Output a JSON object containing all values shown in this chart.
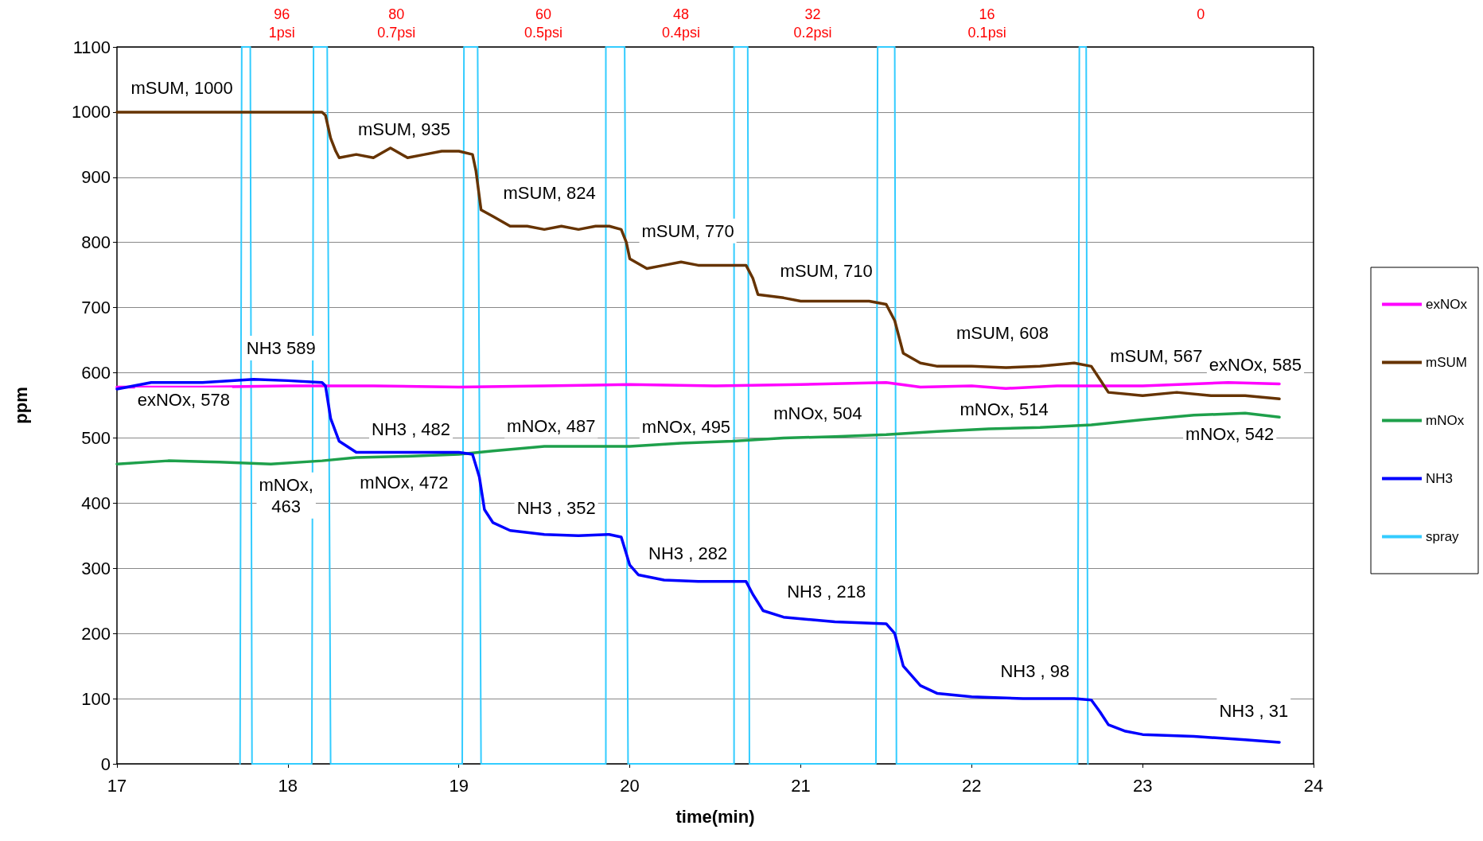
{
  "chart_data": {
    "type": "line",
    "xlabel": "time(min)",
    "ylabel": "ppm",
    "xlim": [
      17,
      24
    ],
    "xticks": [
      17,
      18,
      19,
      20,
      21,
      22,
      23,
      24
    ],
    "ylim": [
      0,
      1100
    ],
    "yticks": [
      0,
      100,
      200,
      300,
      400,
      500,
      600,
      700,
      800,
      900,
      1000,
      1100
    ],
    "grid": "y",
    "legend": "right",
    "marker": "none",
    "line_style": "solid",
    "series": [
      {
        "name": "exNOx",
        "color": "#ff00ff",
        "x": [
          17,
          17.5,
          18,
          18.5,
          19,
          19.5,
          20,
          20.5,
          21,
          21.5,
          21.7,
          22,
          22.2,
          22.5,
          23,
          23.5,
          23.8
        ],
        "values": [
          578,
          578,
          580,
          580,
          578,
          580,
          582,
          580,
          582,
          585,
          578,
          580,
          576,
          580,
          580,
          585,
          583
        ]
      },
      {
        "name": "mSUM",
        "color": "#663300",
        "x": [
          17,
          18.2,
          18.22,
          18.25,
          18.28,
          18.3,
          18.4,
          18.5,
          18.6,
          18.7,
          18.8,
          18.9,
          19,
          19.08,
          19.1,
          19.13,
          19.2,
          19.3,
          19.4,
          19.5,
          19.6,
          19.7,
          19.8,
          19.88,
          19.95,
          19.98,
          20,
          20.1,
          20.2,
          20.3,
          20.4,
          20.5,
          20.6,
          20.68,
          20.72,
          20.75,
          20.9,
          21,
          21.2,
          21.4,
          21.5,
          21.55,
          21.6,
          21.7,
          21.8,
          22,
          22.2,
          22.4,
          22.6,
          22.7,
          22.75,
          22.8,
          23,
          23.2,
          23.4,
          23.6,
          23.8
        ],
        "values": [
          1000,
          1000,
          995,
          960,
          940,
          930,
          935,
          930,
          945,
          930,
          935,
          940,
          940,
          935,
          910,
          850,
          840,
          825,
          825,
          820,
          825,
          820,
          825,
          825,
          820,
          800,
          775,
          760,
          765,
          770,
          765,
          765,
          765,
          765,
          745,
          720,
          715,
          710,
          710,
          710,
          705,
          680,
          630,
          615,
          610,
          610,
          608,
          610,
          615,
          610,
          590,
          570,
          565,
          570,
          565,
          565,
          560
        ]
      },
      {
        "name": "mNOx",
        "color": "#1ea04b",
        "x": [
          17,
          17.3,
          17.6,
          17.9,
          18.2,
          18.4,
          18.7,
          19,
          19.2,
          19.5,
          19.8,
          20,
          20.3,
          20.6,
          20.9,
          21.2,
          21.5,
          21.8,
          22.1,
          22.4,
          22.7,
          23,
          23.3,
          23.6,
          23.8
        ],
        "values": [
          460,
          465,
          463,
          460,
          465,
          470,
          472,
          475,
          480,
          487,
          487,
          487,
          492,
          495,
          500,
          502,
          505,
          510,
          514,
          516,
          520,
          528,
          535,
          538,
          532
        ]
      },
      {
        "name": "NH3",
        "color": "#0000ff",
        "x": [
          17,
          17.2,
          17.5,
          17.8,
          18,
          18.2,
          18.22,
          18.25,
          18.3,
          18.4,
          18.6,
          18.8,
          19,
          19.08,
          19.12,
          19.15,
          19.2,
          19.3,
          19.5,
          19.7,
          19.88,
          19.95,
          20,
          20.05,
          20.2,
          20.4,
          20.68,
          20.72,
          20.78,
          20.9,
          21.2,
          21.5,
          21.55,
          21.6,
          21.7,
          21.8,
          22,
          22.3,
          22.6,
          22.7,
          22.75,
          22.8,
          22.9,
          23,
          23.3,
          23.6,
          23.8
        ],
        "values": [
          575,
          585,
          585,
          590,
          588,
          585,
          580,
          530,
          495,
          478,
          478,
          478,
          478,
          475,
          440,
          390,
          370,
          358,
          352,
          350,
          352,
          348,
          305,
          290,
          282,
          280,
          280,
          260,
          235,
          225,
          218,
          215,
          200,
          150,
          120,
          108,
          103,
          100,
          100,
          98,
          80,
          60,
          50,
          45,
          42,
          37,
          33
        ]
      },
      {
        "name": "spray",
        "color": "#33ccff",
        "x": [
          17.72,
          17.73,
          17.78,
          17.79,
          18.14,
          18.15,
          18.23,
          18.25,
          19.02,
          19.03,
          19.11,
          19.13,
          19.86,
          19.86,
          19.97,
          19.99,
          20.61,
          20.61,
          20.69,
          20.7,
          21.44,
          21.45,
          21.55,
          21.56,
          22.62,
          22.63,
          22.67,
          22.68
        ],
        "values": [
          0,
          1100,
          1100,
          0,
          0,
          1100,
          1100,
          0,
          0,
          1100,
          1100,
          0,
          0,
          1100,
          1100,
          0,
          0,
          1100,
          1100,
          0,
          0,
          1100,
          1100,
          0,
          0,
          1100,
          1100,
          0
        ]
      }
    ],
    "annotations": [
      "96\n1psi",
      "80\n0.7psi",
      "60\n0.5psi",
      "48\n0.4psi",
      "32\n0.2psi",
      "16\n0.1psi",
      "0",
      {
        "text": "mSUM, 1000",
        "x": 17.38,
        "y": 1000
      },
      {
        "text": "mSUM, 935",
        "x": 18.68,
        "y": 935
      },
      {
        "text": "mSUM, 824",
        "x": 19.53,
        "y": 824
      },
      {
        "text": "mSUM, 770",
        "x": 20.34,
        "y": 770
      },
      {
        "text": "mSUM, 710",
        "x": 21.15,
        "y": 710
      },
      {
        "text": "mSUM, 608",
        "x": 22.18,
        "y": 608
      },
      {
        "text": "mSUM, 567",
        "x": 23.08,
        "y": 567
      },
      {
        "text": "exNOx, 585",
        "x": 23.66,
        "y": 585
      },
      {
        "text": "exNOx, 578",
        "x": 17.39,
        "y": 578
      },
      {
        "text": "NH3 589",
        "x": 17.96,
        "y": 589
      },
      {
        "text": "NH3 , 482",
        "x": 18.72,
        "y": 482
      },
      {
        "text": "mNOx, 487",
        "x": 19.54,
        "y": 487
      },
      {
        "text": "mNOx, 495",
        "x": 20.33,
        "y": 495
      },
      {
        "text": "mNOx, 504",
        "x": 21.1,
        "y": 504
      },
      {
        "text": "mNOx, 514",
        "x": 22.19,
        "y": 514
      },
      {
        "text": "mNOx, 542",
        "x": 23.51,
        "y": 542
      },
      {
        "text": "mNOx,\n463",
        "x": 17.99,
        "y": 463
      },
      {
        "text": "mNOx, 472",
        "x": 18.68,
        "y": 472
      },
      {
        "text": "NH3 , 352",
        "x": 19.57,
        "y": 352
      },
      {
        "text": "NH3 , 282",
        "x": 20.34,
        "y": 282
      },
      {
        "text": "NH3 , 218",
        "x": 21.15,
        "y": 218
      },
      {
        "text": "NH3 , 98",
        "x": 22.37,
        "y": 98
      },
      {
        "text": "NH3 , 31",
        "x": 23.65,
        "y": 31
      }
    ]
  }
}
